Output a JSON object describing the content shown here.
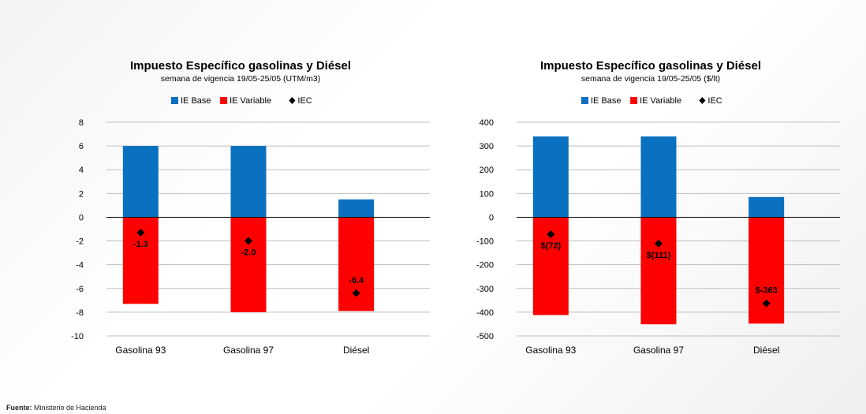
{
  "source": {
    "label": "Fuente:",
    "text": "Ministerio de Hacienda"
  },
  "colors": {
    "ie_base": "#0a70c0",
    "ie_variable": "#ff0000",
    "iec": "#000000",
    "grid": "#bfbfbf",
    "axis": "#000000"
  },
  "chart_data": [
    {
      "type": "bar",
      "title": "Impuesto Específico gasolinas y Diésel",
      "subtitle": "semana de vigencia 19/05-25/05 (UTM/m3)",
      "categories": [
        "Gasolina 93",
        "Gasolina 97",
        "Diésel"
      ],
      "ylim": [
        -10,
        8
      ],
      "yticks": [
        8,
        6,
        4,
        2,
        0,
        -2,
        -4,
        -6,
        -8,
        -10
      ],
      "ytick_labels": [
        "8",
        "6",
        "4",
        "2",
        "0",
        "-2",
        "-4",
        "-6",
        "-8",
        "-10"
      ],
      "legend": [
        "IE Base",
        "IE Variable",
        "IEC"
      ],
      "legend_position": "top",
      "grid": true,
      "series": [
        {
          "name": "IE Base",
          "kind": "bar",
          "values": [
            6.0,
            6.0,
            1.5
          ]
        },
        {
          "name": "IE Variable",
          "kind": "bar",
          "values": [
            -7.3,
            -8.0,
            -7.9
          ]
        },
        {
          "name": "IEC",
          "kind": "marker",
          "values": [
            -1.3,
            -2.0,
            -6.4
          ]
        }
      ],
      "data_labels": [
        "-1.3",
        "-2.0",
        "-6.4"
      ]
    },
    {
      "type": "bar",
      "title": "Impuesto Específico gasolinas y Diésel",
      "subtitle": "semana de vigencia 19/05-25/05 ($/lt)",
      "categories": [
        "Gasolina 93",
        "Gasolina 97",
        "Diésel"
      ],
      "ylim": [
        -500,
        400
      ],
      "yticks": [
        400,
        300,
        200,
        100,
        0,
        -100,
        -200,
        -300,
        -400,
        -500
      ],
      "ytick_labels": [
        "400",
        "300",
        "200",
        "100",
        "0",
        "-100",
        "-200",
        "-300",
        "-400",
        "-500"
      ],
      "legend": [
        "IE Base",
        "IE Variable",
        "IEC"
      ],
      "legend_position": "top",
      "grid": true,
      "series": [
        {
          "name": "IE Base",
          "kind": "bar",
          "values": [
            340,
            340,
            85
          ]
        },
        {
          "name": "IE Variable",
          "kind": "bar",
          "values": [
            -412,
            -451,
            -448
          ]
        },
        {
          "name": "IEC",
          "kind": "marker",
          "values": [
            -72,
            -111,
            -363
          ]
        }
      ],
      "data_labels": [
        "$(72)",
        "$(111)",
        "$-363"
      ]
    }
  ]
}
